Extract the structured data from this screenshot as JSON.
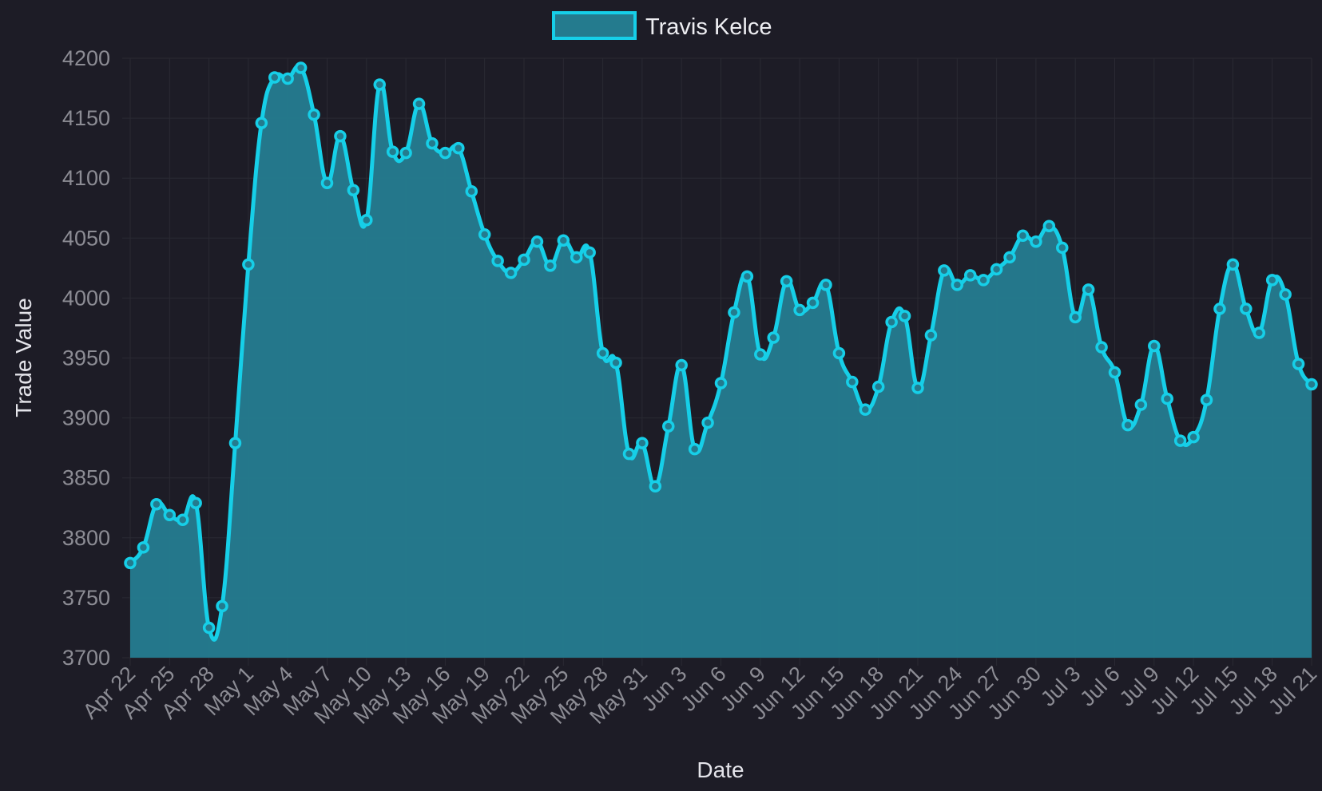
{
  "chart_data": {
    "type": "area",
    "title": "",
    "xlabel": "Date",
    "ylabel": "Trade Value",
    "ylim": [
      3700,
      4200
    ],
    "y_ticks": [
      3700,
      3750,
      3800,
      3850,
      3900,
      3950,
      4000,
      4050,
      4100,
      4150,
      4200
    ],
    "x_ticks": [
      "Apr 22",
      "Apr 25",
      "Apr 28",
      "May 1",
      "May 4",
      "May 7",
      "May 10",
      "May 13",
      "May 16",
      "May 19",
      "May 22",
      "May 25",
      "May 28",
      "May 31",
      "Jun 3",
      "Jun 6",
      "Jun 9",
      "Jun 12",
      "Jun 15",
      "Jun 18",
      "Jun 21",
      "Jun 24",
      "Jun 27",
      "Jun 30",
      "Jul 3",
      "Jul 6",
      "Jul 9",
      "Jul 12",
      "Jul 15",
      "Jul 18",
      "Jul 21"
    ],
    "x_start": "Apr 22",
    "x_end": "Jul 21",
    "grid": true,
    "legend": "top-center",
    "colors": {
      "line": "#16cfe8",
      "fill": "#247b8e",
      "background": "#1d1c26",
      "grid": "#2a2a33"
    },
    "series": [
      {
        "name": "Travis Kelce",
        "values": [
          3779,
          3792,
          3828,
          3819,
          3815,
          3829,
          3725,
          3743,
          3879,
          4028,
          4146,
          4184,
          4183,
          4192,
          4153,
          4096,
          4135,
          4090,
          4065,
          4178,
          4122,
          4121,
          4162,
          4129,
          4121,
          4125,
          4089,
          4053,
          4031,
          4021,
          4032,
          4047,
          4027,
          4048,
          4034,
          4038,
          3954,
          3946,
          3870,
          3879,
          3843,
          3893,
          3944,
          3874,
          3896,
          3929,
          3988,
          4018,
          3953,
          3967,
          4014,
          3990,
          3996,
          4011,
          3954,
          3930,
          3907,
          3926,
          3980,
          3985,
          3925,
          3969,
          4023,
          4011,
          4019,
          4015,
          4024,
          4034,
          4052,
          4047,
          4060,
          4042,
          3984,
          4007,
          3959,
          3938,
          3894,
          3911,
          3960,
          3916,
          3881,
          3884,
          3915,
          3991,
          4028,
          3991,
          3971,
          4015,
          4003,
          3945,
          3928
        ]
      }
    ]
  }
}
